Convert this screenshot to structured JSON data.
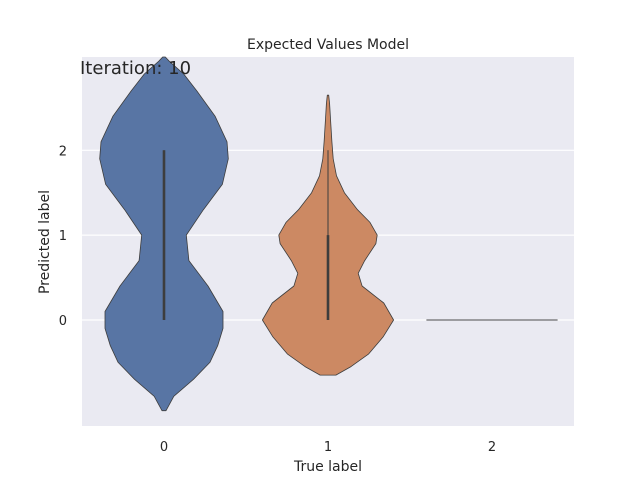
{
  "chart_data": {
    "type": "violin",
    "title": "Expected Values Model",
    "annotation": "Iteration: 10",
    "xlabel": "True label",
    "ylabel": "Predicted label",
    "categories": [
      "0",
      "1",
      "2"
    ],
    "yticks": [
      0,
      1,
      2
    ],
    "ytick_labels": [
      "0",
      "1",
      "2"
    ],
    "ylim": [
      -1.25,
      3.1
    ],
    "grid": true,
    "series": [
      {
        "category": "0",
        "color": "#5875a4",
        "data_min": 0,
        "data_max": 2,
        "box_low": 0,
        "box_high": 2,
        "profile": [
          [
            -1.07,
            0.03
          ],
          [
            -0.9,
            0.15
          ],
          [
            -0.7,
            0.45
          ],
          [
            -0.5,
            0.7
          ],
          [
            -0.3,
            0.82
          ],
          [
            -0.1,
            0.9
          ],
          [
            0.1,
            0.9
          ],
          [
            0.4,
            0.67
          ],
          [
            0.7,
            0.38
          ],
          [
            1.0,
            0.34
          ],
          [
            1.3,
            0.6
          ],
          [
            1.6,
            0.89
          ],
          [
            1.9,
            0.98
          ],
          [
            2.1,
            0.96
          ],
          [
            2.4,
            0.78
          ],
          [
            2.7,
            0.5
          ],
          [
            2.9,
            0.3
          ],
          [
            3.05,
            0.08
          ],
          [
            3.1,
            0.02
          ]
        ]
      },
      {
        "category": "1",
        "color": "#cc8963",
        "data_min": 0,
        "data_max": 2,
        "box_low": 0,
        "box_high": 1,
        "profile": [
          [
            -0.65,
            0.12
          ],
          [
            -0.55,
            0.35
          ],
          [
            -0.4,
            0.62
          ],
          [
            -0.2,
            0.84
          ],
          [
            0.0,
            1.0
          ],
          [
            0.2,
            0.85
          ],
          [
            0.4,
            0.52
          ],
          [
            0.55,
            0.46
          ],
          [
            0.7,
            0.56
          ],
          [
            0.9,
            0.73
          ],
          [
            1.0,
            0.75
          ],
          [
            1.15,
            0.64
          ],
          [
            1.3,
            0.45
          ],
          [
            1.5,
            0.25
          ],
          [
            1.7,
            0.13
          ],
          [
            1.9,
            0.08
          ],
          [
            2.1,
            0.06
          ],
          [
            2.35,
            0.04
          ],
          [
            2.55,
            0.025
          ],
          [
            2.65,
            0.01
          ]
        ]
      },
      {
        "category": "2",
        "color": "#5f9e6e",
        "data_min": 0,
        "data_max": 0,
        "box_low": 0,
        "box_high": 0,
        "profile": []
      }
    ]
  }
}
